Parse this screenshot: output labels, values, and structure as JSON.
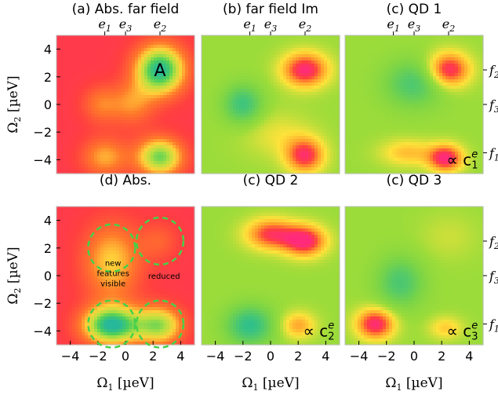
{
  "chart_data": [
    {
      "type": "heatmap",
      "title": "(a) Abs. far field",
      "top_labels": [
        "e1",
        "e3",
        "e2"
      ],
      "annotations": [
        {
          "text": "A",
          "x": 2.5,
          "y": 2.5
        }
      ],
      "xlim": [
        -5,
        5
      ],
      "ylim": [
        -5,
        5
      ],
      "yticks": [
        "4",
        "2",
        "0",
        "−2",
        "−4"
      ],
      "ylabel": "Ω2 [µeV]",
      "colors": {
        "bg": "#ff2b7a",
        "base": "#ff3f3f"
      },
      "blobs": [
        {
          "x": 2.5,
          "y": 2.5,
          "sx": 1.3,
          "sy": 1.3,
          "v": 1.0
        },
        {
          "x": 2.5,
          "y": -3.8,
          "sx": 1.2,
          "sy": 1.0,
          "v": 0.8
        },
        {
          "x": -1.5,
          "y": -3.8,
          "sx": 1.2,
          "sy": 1.0,
          "v": 0.42
        },
        {
          "x": 0.5,
          "y": 0.0,
          "sx": 1.1,
          "sy": 1.1,
          "v": 0.33
        },
        {
          "x": -1.8,
          "y": 0.0,
          "sx": 1.0,
          "sy": 1.0,
          "v": 0.3
        }
      ]
    },
    {
      "type": "heatmap",
      "title": "(b) far field Im",
      "top_labels": [
        "e1",
        "e3",
        "e2"
      ],
      "xlim": [
        -5,
        5
      ],
      "ylim": [
        -5,
        5
      ],
      "colors": {
        "bg": "#9bdc3a",
        "base": "#8fd840"
      },
      "blobs": [
        {
          "x": 2.5,
          "y": 2.5,
          "sx": 1.2,
          "sy": 0.9,
          "v": 1.0
        },
        {
          "x": 2.5,
          "y": -3.7,
          "sx": 1.0,
          "sy": 0.9,
          "v": 0.9
        },
        {
          "x": -2.0,
          "y": 0.0,
          "sx": 1.0,
          "sy": 1.0,
          "v": -0.7
        },
        {
          "x": 0.5,
          "y": -2.2,
          "sx": 1.8,
          "sy": 1.2,
          "v": 0.25
        }
      ]
    },
    {
      "type": "heatmap",
      "title": "(c) QD 1",
      "top_labels": [
        "e1",
        "e3",
        "e2"
      ],
      "right_labels": [
        "f2",
        "f3",
        "f1"
      ],
      "annotations": [
        {
          "text": "∝ c",
          "sub": "1",
          "sup": "e",
          "x": 3.5,
          "y": -4.0
        }
      ],
      "xlim": [
        -5,
        5
      ],
      "ylim": [
        -5,
        5
      ],
      "colors": {
        "bg": "#9bdc3a",
        "base": "#8fd840"
      },
      "blobs": [
        {
          "x": 2.5,
          "y": 2.5,
          "sx": 1.1,
          "sy": 0.9,
          "v": 1.0
        },
        {
          "x": 2.3,
          "y": -3.9,
          "sx": 0.9,
          "sy": 0.7,
          "v": 1.0
        },
        {
          "x": -0.5,
          "y": -3.5,
          "sx": 1.4,
          "sy": 0.7,
          "v": 0.45
        },
        {
          "x": 0.0,
          "y": 1.5,
          "sx": 1.5,
          "sy": 1.2,
          "v": -0.6
        }
      ]
    },
    {
      "type": "heatmap",
      "title": "(d) Abs.",
      "xlim": [
        -5,
        5
      ],
      "ylim": [
        -5,
        5
      ],
      "xticks": [
        "−4",
        "−2",
        "0",
        "2",
        "4"
      ],
      "yticks": [
        "4",
        "2",
        "0",
        "−2",
        "−4"
      ],
      "xlabel": "Ω1 [µeV]",
      "ylabel": "Ω2 [µeV]",
      "annotations": [
        {
          "text": "new",
          "x": -0.9,
          "y": 0.95
        },
        {
          "text": "features",
          "x": -0.9,
          "y": 0.2
        },
        {
          "text": "visible",
          "x": -0.9,
          "y": -0.55
        },
        {
          "text": "reduced",
          "x": 2.8,
          "y": 0.0
        }
      ],
      "circles": [
        {
          "x": -1.0,
          "y": 2.0,
          "r": 1.7
        },
        {
          "x": 2.5,
          "y": 2.5,
          "r": 1.7
        },
        {
          "x": -1.0,
          "y": -3.5,
          "r": 1.7
        },
        {
          "x": 2.5,
          "y": -3.5,
          "r": 1.7
        }
      ],
      "colors": {
        "bg": "#ff2b7a",
        "base": "#ff3f3f",
        "circle": "#43d24a"
      },
      "blobs": [
        {
          "x": -1.0,
          "y": -3.6,
          "sx": 1.5,
          "sy": 1.0,
          "v": 1.0
        },
        {
          "x": 2.5,
          "y": -3.6,
          "sx": 1.2,
          "sy": 1.0,
          "v": 0.7
        },
        {
          "x": -1.0,
          "y": 1.0,
          "sx": 1.5,
          "sy": 2.0,
          "v": 0.5
        },
        {
          "x": 2.5,
          "y": 2.5,
          "sx": 1.0,
          "sy": 1.0,
          "v": 0.2
        }
      ]
    },
    {
      "type": "heatmap",
      "title": "(c) QD 2",
      "xlim": [
        -5,
        5
      ],
      "ylim": [
        -5,
        5
      ],
      "xticks": [
        "−4",
        "−2",
        "0",
        "2",
        "4"
      ],
      "xlabel": "Ω1 [µeV]",
      "annotations": [
        {
          "text": "∝ c",
          "sub": "2",
          "sup": "e",
          "x": 3.5,
          "y": -4.0
        }
      ],
      "colors": {
        "bg": "#9bdc3a",
        "base": "#8fd840"
      },
      "blobs": [
        {
          "x": 2.5,
          "y": 2.5,
          "sx": 1.1,
          "sy": 0.8,
          "v": 1.0
        },
        {
          "x": 0.0,
          "y": 3.0,
          "sx": 1.3,
          "sy": 0.8,
          "v": 0.85
        },
        {
          "x": -1.5,
          "y": -3.6,
          "sx": 1.2,
          "sy": 1.0,
          "v": -0.8
        },
        {
          "x": 2.0,
          "y": -3.6,
          "sx": 0.9,
          "sy": 0.7,
          "v": 0.55
        }
      ]
    },
    {
      "type": "heatmap",
      "title": "(c) QD 3",
      "xlim": [
        -5,
        5
      ],
      "ylim": [
        -5,
        5
      ],
      "xticks": [
        "−4",
        "−2",
        "0",
        "2",
        "4"
      ],
      "xlabel": "Ω1 [µeV]",
      "right_labels": [
        "f2",
        "f3",
        "f1"
      ],
      "annotations": [
        {
          "text": "∝ c",
          "sub": "3",
          "sup": "e",
          "x": 3.5,
          "y": -4.0
        }
      ],
      "colors": {
        "bg": "#9bdc3a",
        "base": "#8fd840"
      },
      "blobs": [
        {
          "x": -2.8,
          "y": -3.5,
          "sx": 1.0,
          "sy": 0.8,
          "v": 1.0
        },
        {
          "x": -1.0,
          "y": -0.5,
          "sx": 1.2,
          "sy": 1.3,
          "v": -0.6
        },
        {
          "x": 2.3,
          "y": -3.8,
          "sx": 0.9,
          "sy": 0.6,
          "v": 0.4
        },
        {
          "x": 2.5,
          "y": 2.8,
          "sx": 1.5,
          "sy": 1.2,
          "v": 0.15
        }
      ]
    }
  ]
}
